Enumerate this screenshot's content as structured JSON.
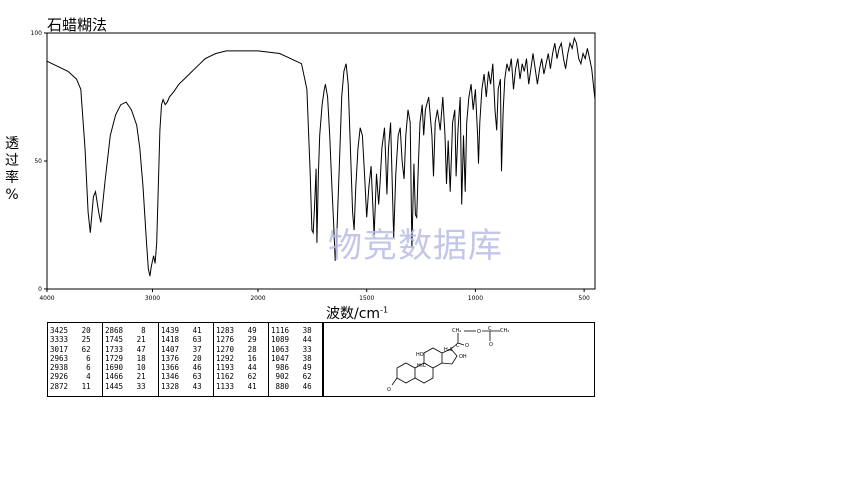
{
  "chart_data": {
    "type": "line",
    "title": "石蜡糊法",
    "ylabel_chars": [
      "透",
      "过",
      "率",
      "%"
    ],
    "xlabel": "波数/cm",
    "xlabel_sup": "-1",
    "x_ticks": [
      "4000",
      "3000",
      "2000",
      "1500",
      "1000",
      "500"
    ],
    "y_ticks": [
      "100",
      "50",
      "0"
    ],
    "ylim": [
      0,
      100
    ],
    "series": [
      {
        "points": [
          [
            4000,
            89
          ],
          [
            3900,
            87
          ],
          [
            3800,
            85
          ],
          [
            3720,
            82
          ],
          [
            3680,
            78
          ],
          [
            3640,
            55
          ],
          [
            3610,
            30
          ],
          [
            3590,
            22
          ],
          [
            3560,
            36
          ],
          [
            3540,
            38
          ],
          [
            3510,
            30
          ],
          [
            3490,
            26
          ],
          [
            3450,
            42
          ],
          [
            3400,
            60
          ],
          [
            3350,
            68
          ],
          [
            3300,
            72
          ],
          [
            3250,
            73
          ],
          [
            3200,
            70
          ],
          [
            3150,
            64
          ],
          [
            3120,
            55
          ],
          [
            3090,
            40
          ],
          [
            3060,
            20
          ],
          [
            3040,
            8
          ],
          [
            3025,
            5
          ],
          [
            3010,
            9
          ],
          [
            2990,
            13
          ],
          [
            2975,
            10
          ],
          [
            2960,
            18
          ],
          [
            2945,
            40
          ],
          [
            2930,
            62
          ],
          [
            2915,
            72
          ],
          [
            2900,
            74
          ],
          [
            2880,
            72
          ],
          [
            2860,
            73
          ],
          [
            2840,
            75
          ],
          [
            2800,
            77
          ],
          [
            2750,
            80
          ],
          [
            2700,
            82
          ],
          [
            2650,
            84
          ],
          [
            2600,
            86
          ],
          [
            2550,
            88
          ],
          [
            2500,
            90
          ],
          [
            2400,
            92
          ],
          [
            2300,
            93
          ],
          [
            2200,
            93
          ],
          [
            2000,
            93
          ],
          [
            1900,
            92
          ],
          [
            1800,
            88
          ],
          [
            1775,
            78
          ],
          [
            1760,
            45
          ],
          [
            1752,
            23
          ],
          [
            1746,
            22
          ],
          [
            1740,
            32
          ],
          [
            1733,
            47
          ],
          [
            1729,
            18
          ],
          [
            1722,
            45
          ],
          [
            1716,
            60
          ],
          [
            1705,
            72
          ],
          [
            1695,
            78
          ],
          [
            1690,
            80
          ],
          [
            1680,
            75
          ],
          [
            1670,
            60
          ],
          [
            1660,
            40
          ],
          [
            1652,
            25
          ],
          [
            1645,
            11
          ],
          [
            1638,
            20
          ],
          [
            1625,
            50
          ],
          [
            1615,
            75
          ],
          [
            1605,
            85
          ],
          [
            1595,
            88
          ],
          [
            1585,
            80
          ],
          [
            1575,
            55
          ],
          [
            1565,
            30
          ],
          [
            1558,
            23
          ],
          [
            1550,
            40
          ],
          [
            1540,
            55
          ],
          [
            1530,
            63
          ],
          [
            1520,
            60
          ],
          [
            1510,
            45
          ],
          [
            1500,
            28
          ],
          [
            1490,
            40
          ],
          [
            1480,
            48
          ],
          [
            1466,
            21
          ],
          [
            1455,
            45
          ],
          [
            1445,
            33
          ],
          [
            1439,
            41
          ],
          [
            1430,
            55
          ],
          [
            1418,
            63
          ],
          [
            1412,
            50
          ],
          [
            1407,
            37
          ],
          [
            1400,
            55
          ],
          [
            1390,
            65
          ],
          [
            1376,
            20
          ],
          [
            1366,
            45
          ],
          [
            1355,
            60
          ],
          [
            1346,
            63
          ],
          [
            1337,
            50
          ],
          [
            1328,
            43
          ],
          [
            1320,
            60
          ],
          [
            1310,
            70
          ],
          [
            1300,
            65
          ],
          [
            1292,
            16
          ],
          [
            1283,
            49
          ],
          [
            1276,
            29
          ],
          [
            1270,
            28
          ],
          [
            1262,
            50
          ],
          [
            1255,
            65
          ],
          [
            1245,
            72
          ],
          [
            1238,
            60
          ],
          [
            1230,
            70
          ],
          [
            1215,
            75
          ],
          [
            1200,
            60
          ],
          [
            1193,
            44
          ],
          [
            1185,
            65
          ],
          [
            1175,
            70
          ],
          [
            1162,
            62
          ],
          [
            1150,
            75
          ],
          [
            1140,
            60
          ],
          [
            1133,
            41
          ],
          [
            1125,
            58
          ],
          [
            1116,
            38
          ],
          [
            1105,
            65
          ],
          [
            1095,
            70
          ],
          [
            1089,
            44
          ],
          [
            1080,
            62
          ],
          [
            1070,
            75
          ],
          [
            1063,
            33
          ],
          [
            1055,
            60
          ],
          [
            1047,
            38
          ],
          [
            1040,
            65
          ],
          [
            1030,
            75
          ],
          [
            1020,
            80
          ],
          [
            1010,
            70
          ],
          [
            1000,
            78
          ],
          [
            990,
            60
          ],
          [
            986,
            49
          ],
          [
            980,
            65
          ],
          [
            970,
            78
          ],
          [
            960,
            84
          ],
          [
            950,
            75
          ],
          [
            940,
            85
          ],
          [
            930,
            80
          ],
          [
            920,
            88
          ],
          [
            910,
            70
          ],
          [
            902,
            62
          ],
          [
            895,
            78
          ],
          [
            885,
            82
          ],
          [
            880,
            46
          ],
          [
            872,
            70
          ],
          [
            865,
            82
          ],
          [
            855,
            88
          ],
          [
            845,
            85
          ],
          [
            835,
            90
          ],
          [
            825,
            78
          ],
          [
            815,
            86
          ],
          [
            805,
            90
          ],
          [
            795,
            82
          ],
          [
            785,
            88
          ],
          [
            775,
            85
          ],
          [
            765,
            90
          ],
          [
            755,
            80
          ],
          [
            745,
            86
          ],
          [
            735,
            92
          ],
          [
            725,
            86
          ],
          [
            715,
            80
          ],
          [
            705,
            86
          ],
          [
            695,
            90
          ],
          [
            685,
            84
          ],
          [
            675,
            88
          ],
          [
            665,
            92
          ],
          [
            655,
            86
          ],
          [
            645,
            92
          ],
          [
            635,
            96
          ],
          [
            625,
            90
          ],
          [
            615,
            94
          ],
          [
            605,
            96
          ],
          [
            595,
            90
          ],
          [
            585,
            86
          ],
          [
            575,
            92
          ],
          [
            565,
            96
          ],
          [
            555,
            94
          ],
          [
            545,
            98
          ],
          [
            535,
            96
          ],
          [
            525,
            90
          ],
          [
            515,
            88
          ],
          [
            505,
            92
          ],
          [
            495,
            90
          ],
          [
            485,
            94
          ],
          [
            475,
            90
          ],
          [
            465,
            86
          ],
          [
            455,
            78
          ],
          [
            450,
            74
          ]
        ]
      }
    ]
  },
  "peak_table": {
    "columns": [
      [
        [
          "3425",
          "20"
        ],
        [
          "3333",
          "25"
        ],
        [
          "3017",
          "62"
        ],
        [
          "2963",
          "6"
        ],
        [
          "2938",
          "6"
        ],
        [
          "2926",
          "4"
        ],
        [
          "2872",
          "11"
        ]
      ],
      [
        [
          "2868",
          "8"
        ],
        [
          "1745",
          "21"
        ],
        [
          "1733",
          "47"
        ],
        [
          "1729",
          "18"
        ],
        [
          "1690",
          "10"
        ],
        [
          "1466",
          "21"
        ],
        [
          "1445",
          "33"
        ]
      ],
      [
        [
          "1439",
          "41"
        ],
        [
          "1418",
          "63"
        ],
        [
          "1407",
          "37"
        ],
        [
          "1376",
          "20"
        ],
        [
          "1366",
          "46"
        ],
        [
          "1346",
          "63"
        ],
        [
          "1328",
          "43"
        ]
      ],
      [
        [
          "1283",
          "49"
        ],
        [
          "1276",
          "29"
        ],
        [
          "1270",
          "28"
        ],
        [
          "1292",
          "16"
        ],
        [
          "1193",
          "44"
        ],
        [
          "1162",
          "62"
        ],
        [
          "1133",
          "41"
        ]
      ],
      [
        [
          "1116",
          "38"
        ],
        [
          "1089",
          "44"
        ],
        [
          "1063",
          "33"
        ],
        [
          "1047",
          "38"
        ],
        [
          "986",
          "49"
        ],
        [
          "902",
          "62"
        ],
        [
          "880",
          "46"
        ]
      ]
    ]
  },
  "structure": {
    "labels": [
      "CH₂",
      "O",
      "C",
      "CH₃",
      "O",
      "HO",
      "H₃C",
      "H₃C",
      "C",
      "O",
      "OH",
      "O"
    ]
  },
  "watermark": "物竞数据库",
  "colors": {
    "line": "#000000",
    "frame": "#000000",
    "watermark": "#b9bde6"
  }
}
